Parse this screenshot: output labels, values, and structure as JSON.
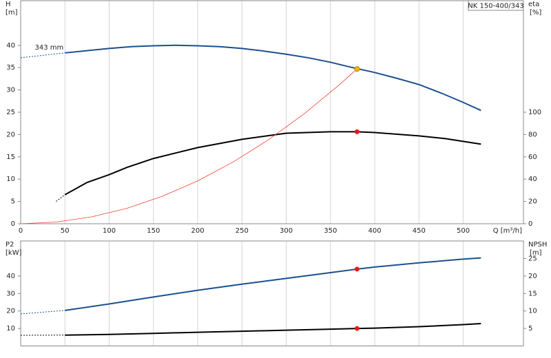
{
  "chart_data": [
    {
      "type": "line",
      "title": "NK 150-400/343",
      "xlabel": "Q [m³/h]",
      "ylabel": "H",
      "yunit": "[m]",
      "y2label": "eta",
      "y2unit": "[%]",
      "xlim": [
        0,
        568
      ],
      "xticks": [
        0,
        50,
        100,
        150,
        200,
        250,
        300,
        350,
        400,
        450,
        500
      ],
      "ylim": [
        0,
        50
      ],
      "yticks": [
        0,
        5,
        10,
        15,
        20,
        25,
        30,
        35,
        40
      ],
      "y2lim": [
        0,
        200
      ],
      "y2ticks": [
        0,
        20,
        40,
        60,
        80,
        100
      ],
      "grid": "x",
      "series": [
        {
          "name": "343 mm",
          "color": "#1a4f8f",
          "style": "dashed",
          "x": [
            0,
            50
          ],
          "values": [
            37.2,
            38.3
          ]
        },
        {
          "color": "#1a4f8f",
          "style": "solid",
          "x": [
            50,
            75,
            100,
            125,
            150,
            175,
            200,
            225,
            250,
            275,
            300,
            325,
            350,
            375,
            400,
            425,
            450,
            475,
            500,
            520
          ],
          "values": [
            38.3,
            38.8,
            39.3,
            39.7,
            39.9,
            40,
            39.9,
            39.7,
            39.3,
            38.7,
            38,
            37.2,
            36.2,
            35,
            33.9,
            32.6,
            31.2,
            29.3,
            27.2,
            25.4
          ]
        },
        {
          "color": "#000000",
          "style": "dashed",
          "axis": "y2",
          "x": [
            40,
            50
          ],
          "values": [
            20,
            26
          ]
        },
        {
          "color": "#000000",
          "style": "solid",
          "axis": "y2",
          "x": [
            50,
            75,
            100,
            120,
            150,
            200,
            250,
            300,
            350,
            380,
            400,
            450,
            480,
            520
          ],
          "values": [
            26,
            37,
            44,
            50.5,
            58.5,
            68.3,
            75.7,
            81.2,
            82.5,
            82.5,
            81.8,
            78.8,
            76.3,
            71.4
          ]
        },
        {
          "color": "#f04030",
          "style": "thin",
          "x": [
            0,
            40,
            80,
            120,
            160,
            200,
            240,
            280,
            320,
            360,
            380
          ],
          "values": [
            0,
            0.38,
            1.54,
            3.46,
            6.15,
            9.61,
            13.84,
            18.84,
            24.6,
            31.14,
            34.7
          ]
        }
      ],
      "markers": [
        {
          "x": 380,
          "value": 34.7,
          "color": "#f5b800"
        },
        {
          "x": 380,
          "value": 82.5,
          "color": "#e81818",
          "axis": "y2"
        }
      ]
    },
    {
      "type": "line",
      "ylabel": "P2",
      "yunit": "[kW]",
      "y2label": "NPSH",
      "y2unit": "[m]",
      "ylim": [
        0,
        60
      ],
      "yticks": [
        10,
        20,
        30,
        40
      ],
      "y2lim": [
        0,
        30
      ],
      "y2ticks": [
        5,
        10,
        15,
        20,
        25
      ],
      "grid": "x",
      "series": [
        {
          "color": "#1a4f8f",
          "style": "dashed",
          "x": [
            0,
            50
          ],
          "values": [
            18.3,
            20.3
          ]
        },
        {
          "color": "#1a4f8f",
          "style": "solid",
          "x": [
            50,
            100,
            150,
            200,
            250,
            300,
            350,
            380,
            400,
            450,
            500,
            520
          ],
          "values": [
            20.3,
            24,
            28,
            31.8,
            35.3,
            38.6,
            41.9,
            43.9,
            45.1,
            47.5,
            49.6,
            50.3
          ]
        },
        {
          "color": "#000000",
          "style": "dashed",
          "axis": "y2",
          "x": [
            0,
            50
          ],
          "values": [
            3.05,
            3.1
          ]
        },
        {
          "color": "#000000",
          "style": "solid",
          "axis": "y2",
          "x": [
            50,
            100,
            150,
            200,
            250,
            300,
            350,
            380,
            400,
            450,
            500,
            520
          ],
          "values": [
            3.1,
            3.3,
            3.6,
            3.9,
            4.2,
            4.5,
            4.8,
            5.0,
            5.1,
            5.5,
            6.1,
            6.4
          ]
        }
      ],
      "markers": [
        {
          "x": 380,
          "value": 43.9,
          "color": "#e81818"
        },
        {
          "x": 380,
          "value": 5.0,
          "color": "#e81818",
          "axis": "y2"
        }
      ]
    }
  ]
}
